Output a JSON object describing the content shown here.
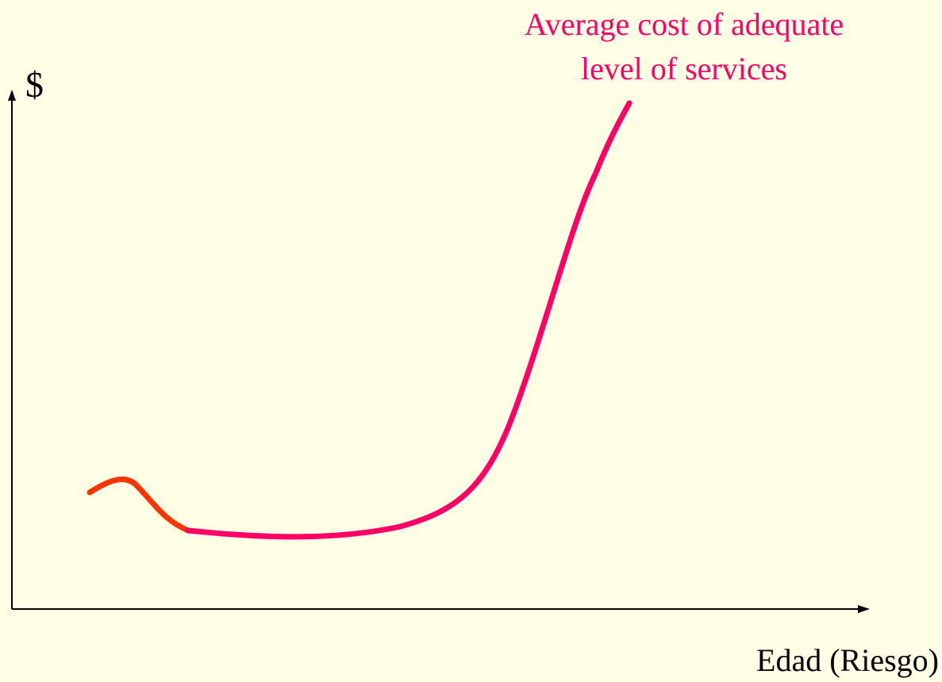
{
  "y_axis_label": "$",
  "x_axis_label": "Edad (Riesgo)",
  "curve_label": {
    "lines": [
      "Average cost of adequate",
      "level of services"
    ]
  }
}
